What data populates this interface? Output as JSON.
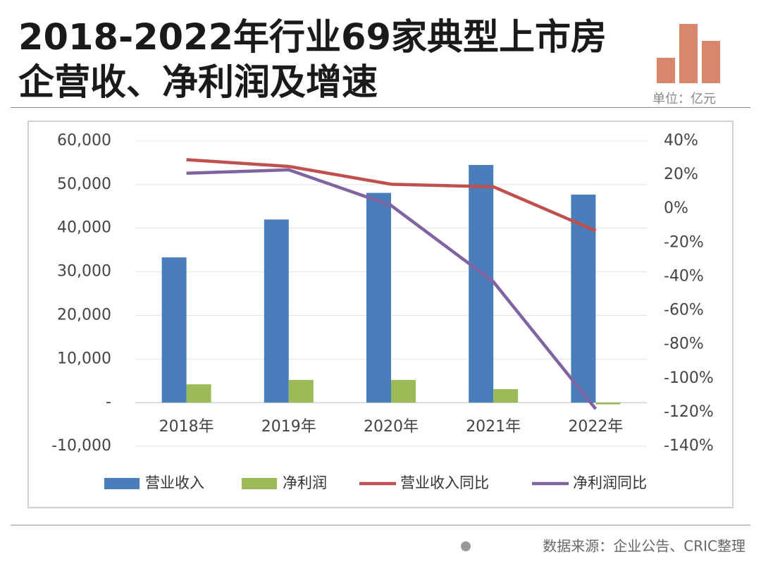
{
  "chart_data": {
    "type": "bar",
    "title": "2018-2022年行业69家典型上市房企营收、净利润及增速",
    "unit": "单位：亿元",
    "source": "数据来源：企业公告、CRIC整理",
    "categories": [
      "2018年",
      "2019年",
      "2020年",
      "2021年",
      "2022年"
    ],
    "series": [
      {
        "name": "营业收入",
        "type": "bar",
        "color": "#4a7ebb",
        "values": [
          33300,
          42000,
          48100,
          54500,
          47700
        ]
      },
      {
        "name": "净利润",
        "type": "bar",
        "color": "#9bbb59",
        "values": [
          4200,
          5200,
          5200,
          3100,
          -400
        ]
      },
      {
        "name": "营业收入同比",
        "type": "line",
        "axis": "y2",
        "color": "#c0504d",
        "values": [
          29,
          25,
          14.5,
          13,
          -13
        ]
      },
      {
        "name": "净利润同比",
        "type": "line",
        "axis": "y2",
        "color": "#8064a2",
        "values": [
          21,
          23,
          2,
          -43,
          -118
        ]
      }
    ],
    "ylim": [
      -10000,
      60000
    ],
    "yticks": [
      {
        "value": -10000,
        "label": "-10,000"
      },
      {
        "value": 0,
        "label": "-"
      },
      {
        "value": 10000,
        "label": "10,000"
      },
      {
        "value": 20000,
        "label": "20,000"
      },
      {
        "value": 30000,
        "label": "30,000"
      },
      {
        "value": 40000,
        "label": "40,000"
      },
      {
        "value": 50000,
        "label": "50,000"
      },
      {
        "value": 60000,
        "label": "60,000"
      }
    ],
    "y2lim": [
      -140,
      40
    ],
    "y2ticks": [
      {
        "value": -140,
        "label": "-140%"
      },
      {
        "value": -120,
        "label": "-120%"
      },
      {
        "value": -100,
        "label": "-100%"
      },
      {
        "value": -80,
        "label": "-80%"
      },
      {
        "value": -60,
        "label": "-60%"
      },
      {
        "value": -40,
        "label": "-40%"
      },
      {
        "value": -20,
        "label": "-20%"
      },
      {
        "value": 0,
        "label": "0%"
      },
      {
        "value": 20,
        "label": "20%"
      },
      {
        "value": 40,
        "label": "40%"
      }
    ],
    "grid": true,
    "legend": "bottom"
  }
}
